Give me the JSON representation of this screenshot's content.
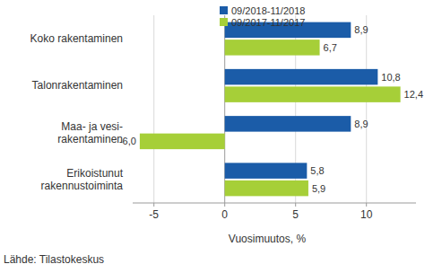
{
  "chart_data": {
    "type": "bar",
    "orientation": "horizontal",
    "categories": [
      "Koko rakentaminen",
      "Talonrakentaminen",
      "Maa- ja vesi-\nrakentaminen",
      "Erikoistunut\nrakennustoiminta"
    ],
    "series": [
      {
        "name": "09/2018-11/2018",
        "color": "#1b5ca8",
        "values": [
          8.9,
          10.8,
          8.9,
          5.8
        ],
        "value_labels": [
          "8,9",
          "10,8",
          "8,9",
          "5,8"
        ]
      },
      {
        "name": "09/2017-11/2017",
        "color": "#a6cf38",
        "values": [
          6.7,
          12.4,
          -6.0,
          5.9
        ],
        "value_labels": [
          "6,7",
          "12,4",
          "-6,0",
          "5,9"
        ]
      }
    ],
    "xlim": [
      -6.5,
      13.5
    ],
    "xticks": [
      -5,
      0,
      5,
      10
    ],
    "xlabel": "Vuosimuutos, %",
    "note": "Lähde: Tilastokeskus",
    "grid": true,
    "legend": "top-left",
    "data_labels": true
  }
}
